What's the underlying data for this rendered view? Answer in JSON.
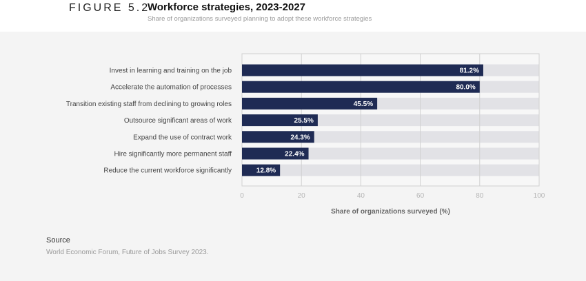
{
  "figure_label": "FIGURE 5.2",
  "chart_data": {
    "type": "bar",
    "orientation": "horizontal",
    "title": "Workforce strategies, 2023-2027",
    "subtitle": "Share of organizations surveyed planning to adopt these workforce strategies",
    "categories": [
      "Invest in learning and training on the job",
      "Accelerate the automation of processes",
      "Transition existing staff from declining to growing roles",
      "Outsource significant areas of work",
      "Expand the use of contract work",
      "Hire significantly more permanent staff",
      "Reduce the current workforce significantly"
    ],
    "values": [
      81.2,
      80.0,
      45.5,
      25.5,
      24.3,
      22.4,
      12.8
    ],
    "data_labels": [
      "81.2%",
      "80.0%",
      "45.5%",
      "25.5%",
      "24.3%",
      "22.4%",
      "12.8%"
    ],
    "xlabel": "Share of organizations surveyed (%)",
    "xlim": [
      0,
      100
    ],
    "xticks": [
      "0",
      "20",
      "40",
      "60",
      "80",
      "100"
    ],
    "grid": true,
    "colors": {
      "bar": "#1f2b54",
      "track": "#e2e2e6",
      "grid": "#d0d0d0"
    }
  },
  "source": {
    "heading": "Source",
    "text": "World Economic Forum, Future of Jobs Survey 2023."
  }
}
